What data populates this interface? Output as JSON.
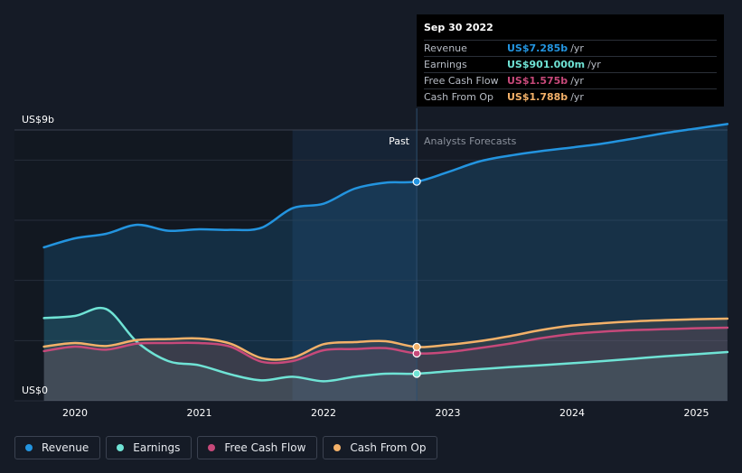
{
  "colors": {
    "revenue": "#2394df",
    "earnings": "#6fe3d5",
    "free_cash_flow": "#c7497a",
    "cash_from_op": "#f3b169",
    "background": "#151b26"
  },
  "tooltip": {
    "date": "Sep 30 2022",
    "rows": [
      {
        "label": "Revenue",
        "value": "US$7.285b",
        "unit": "/yr",
        "color": "#2394df"
      },
      {
        "label": "Earnings",
        "value": "US$901.000m",
        "unit": "/yr",
        "color": "#6fe3d5"
      },
      {
        "label": "Free Cash Flow",
        "value": "US$1.575b",
        "unit": "/yr",
        "color": "#c7497a"
      },
      {
        "label": "Cash From Op",
        "value": "US$1.788b",
        "unit": "/yr",
        "color": "#f3b169"
      }
    ]
  },
  "legend": [
    {
      "label": "Revenue",
      "color": "#2394df"
    },
    {
      "label": "Earnings",
      "color": "#6fe3d5"
    },
    {
      "label": "Free Cash Flow",
      "color": "#c7497a"
    },
    {
      "label": "Cash From Op",
      "color": "#f3b169"
    }
  ],
  "chart_data": {
    "type": "line",
    "y_top_label": "US$9b",
    "y_bottom_label": "US$0",
    "ylim": [
      0,
      9
    ],
    "xlim": [
      2019.75,
      2025.25
    ],
    "x_ticks": [
      2020,
      2021,
      2022,
      2023,
      2024,
      2025
    ],
    "x_tick_labels": [
      "2020",
      "2021",
      "2022",
      "2023",
      "2024",
      "2025"
    ],
    "divider_x": 2022.75,
    "shaded_start_x": 2021.75,
    "past_label": "Past",
    "forecast_label": "Analysts Forecasts",
    "grid": true,
    "series": [
      {
        "name": "Revenue",
        "color": "#2394df",
        "points": [
          [
            2019.75,
            5.1
          ],
          [
            2020.0,
            5.4
          ],
          [
            2020.25,
            5.55
          ],
          [
            2020.5,
            5.85
          ],
          [
            2020.75,
            5.65
          ],
          [
            2021.0,
            5.7
          ],
          [
            2021.25,
            5.68
          ],
          [
            2021.5,
            5.75
          ],
          [
            2021.75,
            6.4
          ],
          [
            2022.0,
            6.55
          ],
          [
            2022.25,
            7.05
          ],
          [
            2022.5,
            7.25
          ],
          [
            2022.75,
            7.285
          ],
          [
            2023.0,
            7.6
          ],
          [
            2023.25,
            7.95
          ],
          [
            2023.5,
            8.15
          ],
          [
            2023.75,
            8.3
          ],
          [
            2024.0,
            8.42
          ],
          [
            2024.25,
            8.55
          ],
          [
            2024.5,
            8.72
          ],
          [
            2024.75,
            8.9
          ],
          [
            2025.0,
            9.05
          ],
          [
            2025.25,
            9.2
          ]
        ]
      },
      {
        "name": "Earnings",
        "color": "#6fe3d5",
        "points": [
          [
            2019.75,
            2.75
          ],
          [
            2020.0,
            2.82
          ],
          [
            2020.25,
            3.05
          ],
          [
            2020.5,
            1.95
          ],
          [
            2020.75,
            1.32
          ],
          [
            2021.0,
            1.18
          ],
          [
            2021.25,
            0.88
          ],
          [
            2021.5,
            0.68
          ],
          [
            2021.75,
            0.8
          ],
          [
            2022.0,
            0.65
          ],
          [
            2022.25,
            0.8
          ],
          [
            2022.5,
            0.9
          ],
          [
            2022.75,
            0.901
          ],
          [
            2023.0,
            0.98
          ],
          [
            2023.25,
            1.05
          ],
          [
            2023.5,
            1.12
          ],
          [
            2023.75,
            1.18
          ],
          [
            2024.0,
            1.25
          ],
          [
            2024.25,
            1.32
          ],
          [
            2024.5,
            1.4
          ],
          [
            2024.75,
            1.48
          ],
          [
            2025.0,
            1.55
          ],
          [
            2025.25,
            1.62
          ]
        ]
      },
      {
        "name": "Free Cash Flow",
        "color": "#c7497a",
        "points": [
          [
            2019.75,
            1.65
          ],
          [
            2020.0,
            1.8
          ],
          [
            2020.25,
            1.7
          ],
          [
            2020.5,
            1.9
          ],
          [
            2020.75,
            1.92
          ],
          [
            2021.0,
            1.92
          ],
          [
            2021.25,
            1.8
          ],
          [
            2021.5,
            1.3
          ],
          [
            2021.75,
            1.32
          ],
          [
            2022.0,
            1.68
          ],
          [
            2022.25,
            1.72
          ],
          [
            2022.5,
            1.75
          ],
          [
            2022.75,
            1.575
          ],
          [
            2023.0,
            1.62
          ],
          [
            2023.25,
            1.75
          ],
          [
            2023.5,
            1.9
          ],
          [
            2023.75,
            2.08
          ],
          [
            2024.0,
            2.22
          ],
          [
            2024.25,
            2.3
          ],
          [
            2024.5,
            2.35
          ],
          [
            2024.75,
            2.38
          ],
          [
            2025.0,
            2.41
          ],
          [
            2025.25,
            2.43
          ]
        ]
      },
      {
        "name": "Cash From Op",
        "color": "#f3b169",
        "points": [
          [
            2019.75,
            1.8
          ],
          [
            2020.0,
            1.92
          ],
          [
            2020.25,
            1.82
          ],
          [
            2020.5,
            2.02
          ],
          [
            2020.75,
            2.05
          ],
          [
            2021.0,
            2.07
          ],
          [
            2021.25,
            1.9
          ],
          [
            2021.5,
            1.42
          ],
          [
            2021.75,
            1.43
          ],
          [
            2022.0,
            1.88
          ],
          [
            2022.25,
            1.95
          ],
          [
            2022.5,
            1.98
          ],
          [
            2022.75,
            1.788
          ],
          [
            2023.0,
            1.86
          ],
          [
            2023.25,
            1.98
          ],
          [
            2023.5,
            2.15
          ],
          [
            2023.75,
            2.35
          ],
          [
            2024.0,
            2.5
          ],
          [
            2024.25,
            2.58
          ],
          [
            2024.5,
            2.64
          ],
          [
            2024.75,
            2.68
          ],
          [
            2025.0,
            2.71
          ],
          [
            2025.25,
            2.73
          ]
        ]
      }
    ]
  }
}
